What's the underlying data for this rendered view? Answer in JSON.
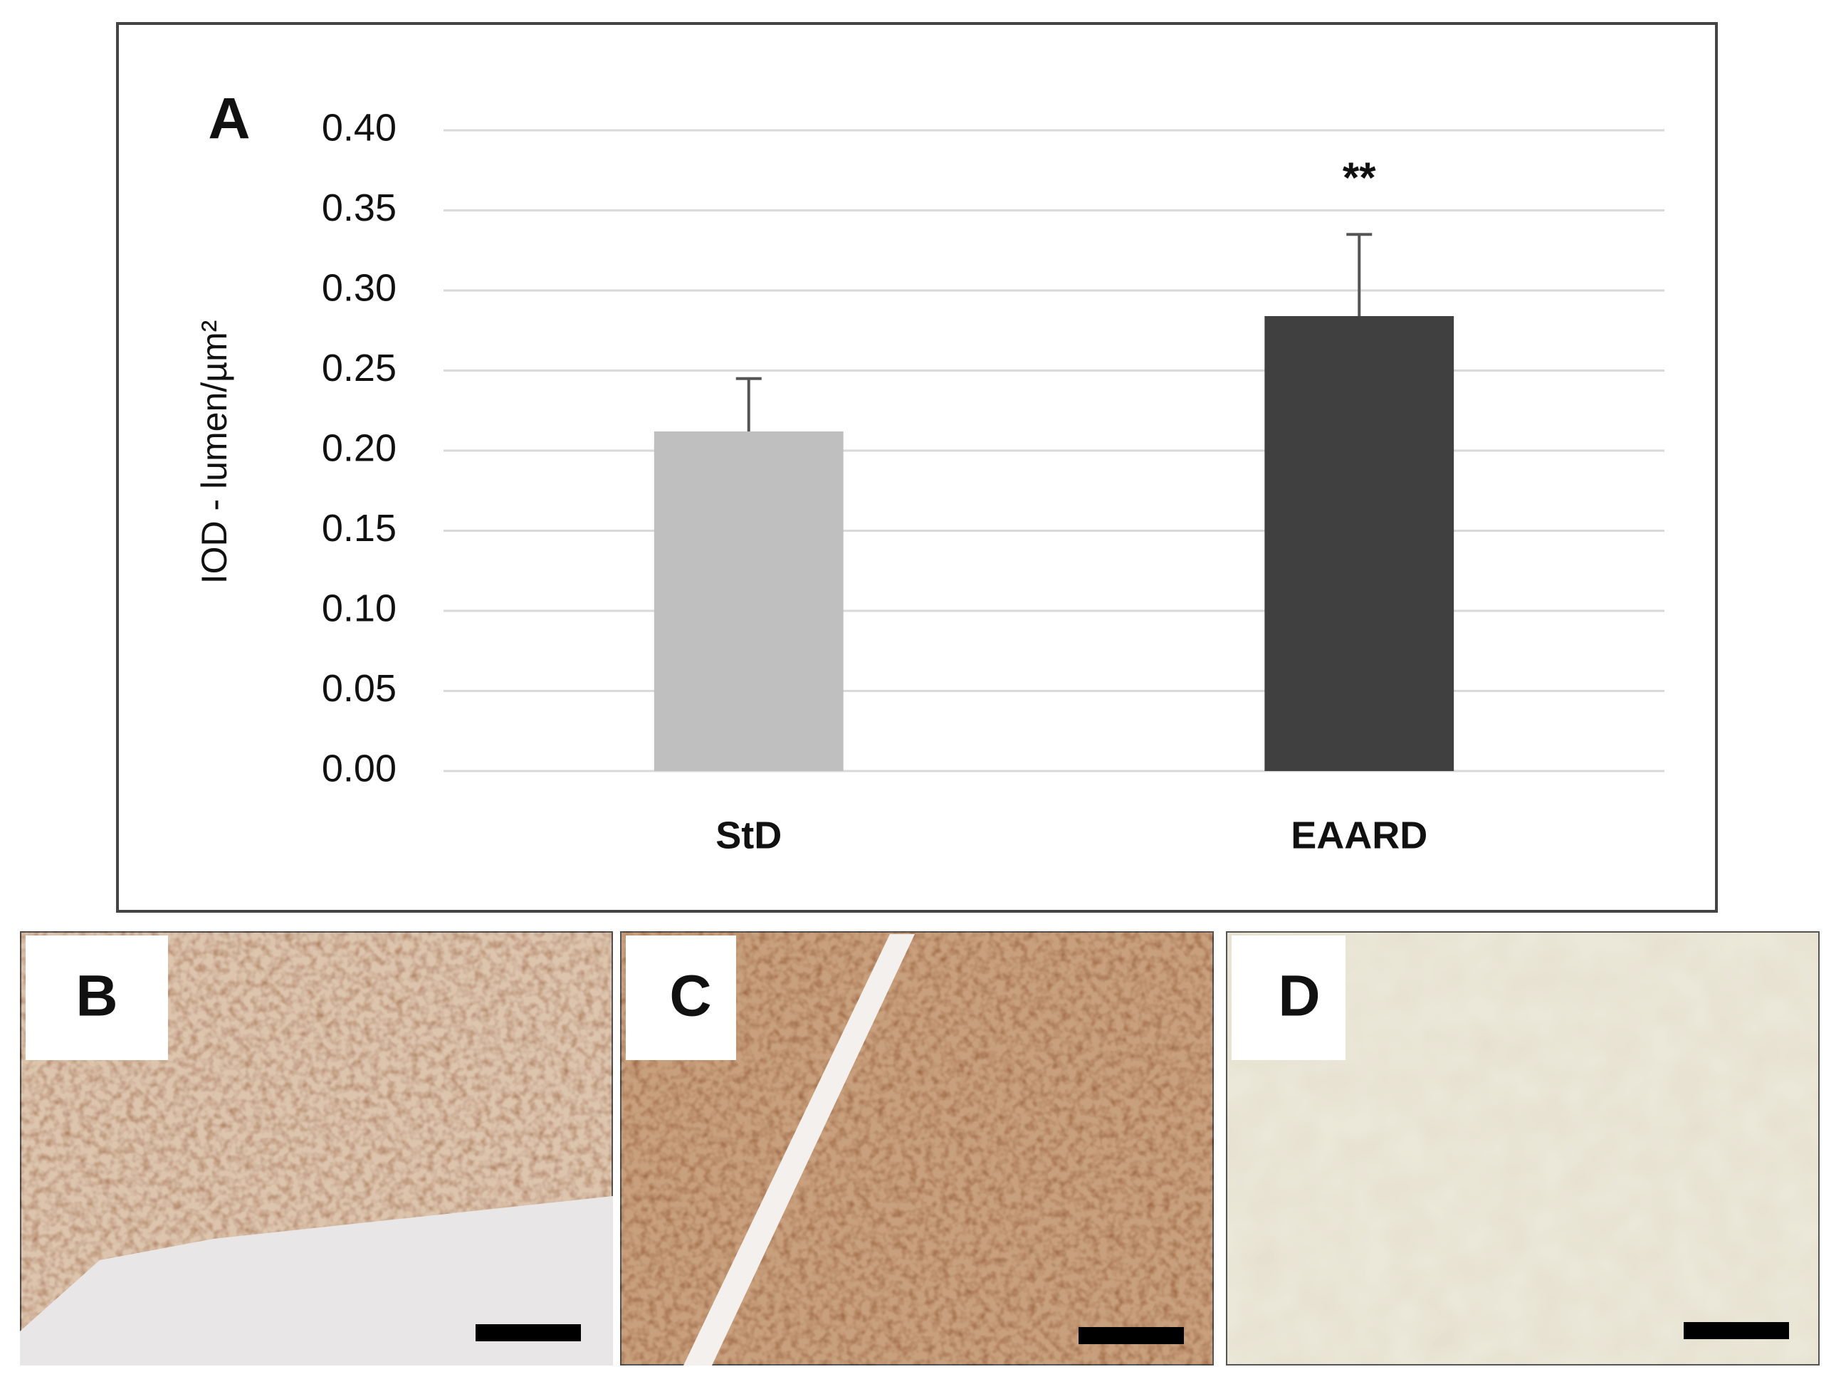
{
  "chart_data": {
    "type": "bar",
    "panel_label": "A",
    "ylabel": "IOD - lumen/µm²",
    "categories": [
      "StD",
      "EAARD"
    ],
    "values": [
      0.212,
      0.284
    ],
    "errors": [
      0.033,
      0.051
    ],
    "colors": [
      "#bfbfbf",
      "#404040"
    ],
    "annotation": "**",
    "ylim": [
      0,
      0.4
    ],
    "yticks": [
      {
        "value": 0,
        "label": "0.00"
      },
      {
        "value": 0.05,
        "label": "0.05"
      },
      {
        "value": 0.1,
        "label": "0.10"
      },
      {
        "value": 0.15,
        "label": "0.15"
      },
      {
        "value": 0.2,
        "label": "0.20"
      },
      {
        "value": 0.25,
        "label": "0.25"
      },
      {
        "value": 0.3,
        "label": "0.30"
      },
      {
        "value": 0.35,
        "label": "0.35"
      },
      {
        "value": 0.4,
        "label": "0.40"
      }
    ],
    "grid": true
  },
  "image_panels": [
    {
      "label": "B"
    },
    {
      "label": "C"
    },
    {
      "label": "D"
    }
  ]
}
